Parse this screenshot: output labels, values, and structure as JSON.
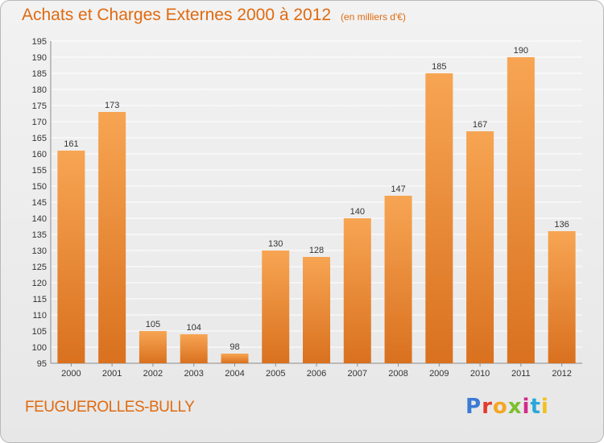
{
  "header": {
    "title": "Achats et Charges Externes 2000 à 2012",
    "subtitle": "(en milliers d'€)"
  },
  "footer": {
    "commune": "FEUGUEROLLES-BULLY",
    "logo": {
      "letters": [
        "P",
        "r",
        "o",
        "x",
        "i",
        "t",
        "i"
      ],
      "colors": [
        "#3a7bd5",
        "#e23b2c",
        "#f5a623",
        "#7cbf2f",
        "#d22a8c",
        "#2aa7d8",
        "#f2c11a"
      ]
    }
  },
  "colors": {
    "accent": "#e06a10",
    "bar_top": "#f7a553",
    "bar_bottom": "#d9711f",
    "grid": "#ffffff"
  },
  "chart_data": {
    "type": "bar",
    "categories": [
      "2000",
      "2001",
      "2002",
      "2003",
      "2004",
      "2005",
      "2006",
      "2007",
      "2008",
      "2009",
      "2010",
      "2011",
      "2012"
    ],
    "values": [
      161,
      173,
      105,
      104,
      98,
      130,
      128,
      140,
      147,
      185,
      167,
      190,
      136
    ],
    "ylim": [
      95,
      195
    ],
    "yticks": [
      95,
      100,
      105,
      110,
      115,
      120,
      125,
      130,
      135,
      140,
      145,
      150,
      155,
      160,
      165,
      170,
      175,
      180,
      185,
      190,
      195
    ],
    "grid": true,
    "data_labels": true
  }
}
